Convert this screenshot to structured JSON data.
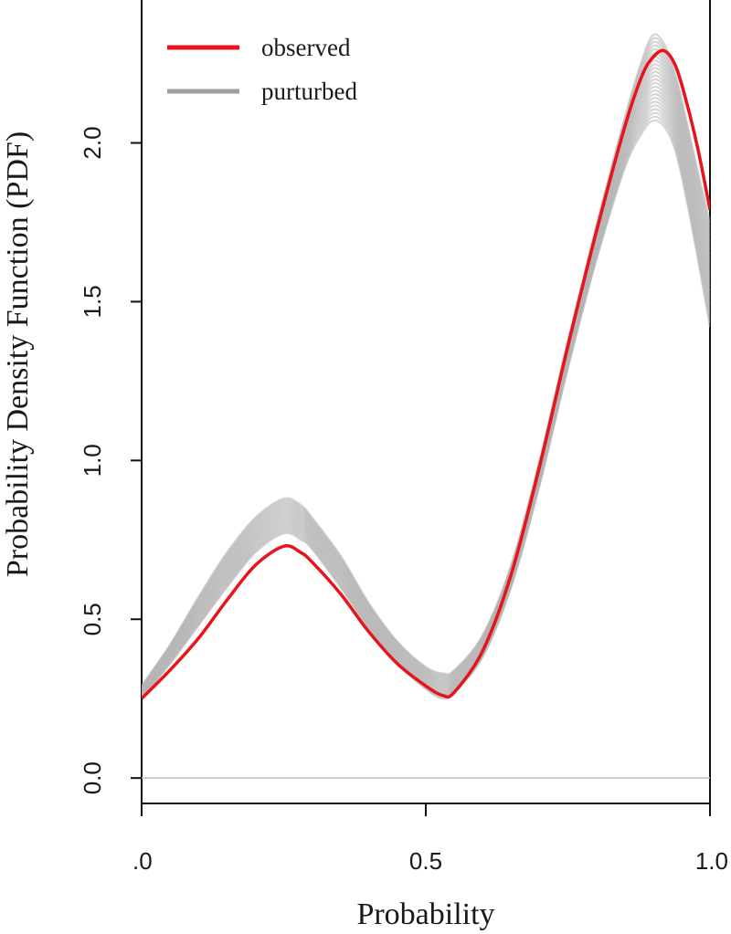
{
  "chart_data": {
    "type": "line",
    "xlabel": "Probability",
    "ylabel": "Probability Density Function (PDF)",
    "xlim": [
      0.0,
      1.0
    ],
    "ylim": [
      -0.08,
      2.45
    ],
    "x_ticks": [
      0.0,
      0.5,
      1.0
    ],
    "x_tick_labels": [
      ".0",
      "0.5",
      "1.0"
    ],
    "y_ticks": [
      0.0,
      0.5,
      1.0,
      1.5,
      2.0
    ],
    "y_tick_labels": [
      "0.0",
      "0.5",
      "1.0",
      "1.5",
      "2.0"
    ],
    "grid": false,
    "legend_position": "top-left",
    "legend": [
      {
        "label": "observed",
        "color": "#e8141b"
      },
      {
        "label": "purturbed",
        "color": "#9e9e9e"
      }
    ],
    "series": [
      {
        "name": "observed",
        "color": "#e8141b",
        "x": [
          0.0,
          0.05,
          0.1,
          0.15,
          0.2,
          0.25,
          0.28,
          0.3,
          0.35,
          0.4,
          0.45,
          0.5,
          0.53,
          0.55,
          0.6,
          0.65,
          0.7,
          0.75,
          0.8,
          0.85,
          0.88,
          0.9,
          0.92,
          0.94,
          0.96,
          0.98,
          1.0
        ],
        "values": [
          0.25,
          0.34,
          0.44,
          0.56,
          0.67,
          0.73,
          0.71,
          0.68,
          0.58,
          0.46,
          0.36,
          0.29,
          0.26,
          0.27,
          0.4,
          0.64,
          0.98,
          1.36,
          1.72,
          2.05,
          2.21,
          2.27,
          2.29,
          2.24,
          2.12,
          1.97,
          1.79
        ]
      },
      {
        "name": "purturbed",
        "color": "#b5b5b5",
        "x": [
          0.0,
          0.05,
          0.1,
          0.15,
          0.2,
          0.25,
          0.28,
          0.3,
          0.35,
          0.4,
          0.45,
          0.5,
          0.53,
          0.55,
          0.6,
          0.65,
          0.7,
          0.75,
          0.8,
          0.85,
          0.88,
          0.9,
          0.92,
          0.94,
          0.96,
          0.98,
          1.0
        ],
        "values": [
          0.27,
          0.39,
          0.52,
          0.65,
          0.76,
          0.81,
          0.79,
          0.76,
          0.64,
          0.5,
          0.39,
          0.31,
          0.29,
          0.3,
          0.41,
          0.63,
          0.96,
          1.33,
          1.68,
          2.0,
          2.14,
          2.19,
          2.17,
          2.1,
          1.96,
          1.78,
          1.6
        ],
        "band_low": [
          0.25,
          0.36,
          0.48,
          0.6,
          0.71,
          0.77,
          0.75,
          0.72,
          0.6,
          0.47,
          0.36,
          0.28,
          0.25,
          0.27,
          0.38,
          0.6,
          0.92,
          1.29,
          1.63,
          1.92,
          2.03,
          2.07,
          2.05,
          1.97,
          1.81,
          1.62,
          1.42
        ],
        "band_high": [
          0.29,
          0.42,
          0.57,
          0.71,
          0.82,
          0.88,
          0.86,
          0.82,
          0.7,
          0.55,
          0.43,
          0.35,
          0.33,
          0.34,
          0.45,
          0.67,
          1.0,
          1.38,
          1.74,
          2.08,
          2.26,
          2.34,
          2.31,
          2.21,
          2.06,
          1.9,
          1.75
        ]
      }
    ]
  }
}
